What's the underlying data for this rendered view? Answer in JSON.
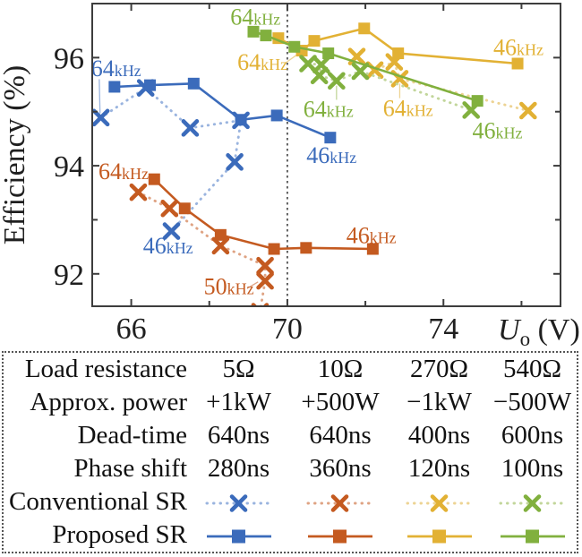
{
  "colors": {
    "blue": {
      "main": "#3B6BBB",
      "light": "#9AB4DF"
    },
    "orange": {
      "main": "#C45A20",
      "light": "#DFA383"
    },
    "yellow": {
      "main": "#E2B134",
      "light": "#EDD393"
    },
    "green": {
      "main": "#81B03E",
      "light": "#C2D69B"
    },
    "axis": "#3D3D3D",
    "text": "#1F1F1F",
    "vline": "#4A4A4A"
  },
  "chart_data": {
    "type": "line",
    "title": "",
    "ylabel": "Efficiency (%)",
    "xlabel_main": "U",
    "xlabel_sub": "o",
    "xlabel_unit": " (V)",
    "xlim": [
      65,
      77
    ],
    "ylim": [
      91.4,
      97.0
    ],
    "xticks": [
      66,
      68,
      70,
      72,
      74,
      76
    ],
    "xtick_labels": {
      "66": "66",
      "70": "70",
      "74": "74"
    },
    "yticks": [
      92,
      93,
      94,
      95,
      96
    ],
    "ytick_labels": {
      "92": "92",
      "94": "94",
      "96": "96"
    },
    "grid": false,
    "vline_x": 70,
    "series": [
      {
        "name": "Conventional SR 5Ω",
        "color": "blue",
        "style": "dotted",
        "marker": "x",
        "points": [
          [
            65.22,
            94.89
          ],
          [
            66.37,
            95.44
          ],
          [
            67.51,
            94.7
          ],
          [
            68.81,
            94.84
          ],
          [
            68.65,
            94.07
          ],
          [
            67.03,
            92.79
          ]
        ]
      },
      {
        "name": "Proposed SR 5Ω",
        "color": "blue",
        "style": "solid",
        "marker": "square",
        "points": [
          [
            65.57,
            95.46
          ],
          [
            66.48,
            95.49
          ],
          [
            67.6,
            95.52
          ],
          [
            68.81,
            94.85
          ],
          [
            69.73,
            94.93
          ],
          [
            71.1,
            94.52
          ]
        ]
      },
      {
        "name": "Conventional SR 10Ω",
        "color": "orange",
        "style": "dotted",
        "marker": "x",
        "points": [
          [
            66.18,
            93.51
          ],
          [
            66.98,
            93.21
          ],
          [
            68.29,
            92.52
          ],
          [
            69.43,
            92.15
          ],
          [
            69.43,
            91.87
          ],
          [
            69.3,
            91.3
          ]
        ]
      },
      {
        "name": "Proposed SR 10Ω",
        "color": "orange",
        "style": "solid",
        "marker": "square",
        "points": [
          [
            66.59,
            93.75
          ],
          [
            67.37,
            93.21
          ],
          [
            68.29,
            92.72
          ],
          [
            69.66,
            92.46
          ],
          [
            70.48,
            92.48
          ],
          [
            72.19,
            92.46
          ]
        ]
      },
      {
        "name": "Conventional SR 270Ω",
        "color": "yellow",
        "style": "dotted",
        "marker": "x",
        "points": [
          [
            71.78,
            96.02
          ],
          [
            72.24,
            95.77
          ],
          [
            72.74,
            95.92
          ],
          [
            72.88,
            95.61
          ],
          [
            76.17,
            95.02
          ]
        ]
      },
      {
        "name": "Proposed SR 270Ω",
        "color": "yellow",
        "style": "solid",
        "marker": "square",
        "points": [
          [
            69.77,
            96.36
          ],
          [
            70.37,
            96.13
          ],
          [
            70.69,
            96.31
          ],
          [
            71.97,
            96.54
          ],
          [
            72.84,
            96.08
          ],
          [
            75.9,
            95.89
          ]
        ]
      },
      {
        "name": "Conventional SR 540Ω",
        "color": "green",
        "style": "dotted",
        "marker": "x",
        "points": [
          [
            70.53,
            95.89
          ],
          [
            70.87,
            95.87
          ],
          [
            70.82,
            95.67
          ],
          [
            71.26,
            95.57
          ],
          [
            71.87,
            95.75
          ],
          [
            74.71,
            95.03
          ]
        ]
      },
      {
        "name": "Proposed SR 540Ω",
        "color": "green",
        "style": "solid",
        "marker": "square",
        "points": [
          [
            69.13,
            96.48
          ],
          [
            69.45,
            96.41
          ],
          [
            70.18,
            96.2
          ],
          [
            71.05,
            96.08
          ],
          [
            74.87,
            95.2
          ]
        ]
      }
    ],
    "annotations": [
      {
        "main": "64",
        "sub": "kHz",
        "color": "blue",
        "x": 64.97,
        "y": 95.66,
        "leader": [
          [
            65.18,
            95.6
          ],
          [
            65.2,
            94.97
          ]
        ]
      },
      {
        "main": "46",
        "sub": "kHz",
        "color": "blue",
        "x": 66.3,
        "y": 92.38
      },
      {
        "main": "46",
        "sub": "kHz",
        "color": "blue",
        "x": 70.49,
        "y": 94.05
      },
      {
        "main": "64",
        "sub": "kHz",
        "color": "orange",
        "x": 65.16,
        "y": 93.75
      },
      {
        "main": "50",
        "sub": "kHz",
        "color": "orange",
        "x": 67.86,
        "y": 91.62,
        "leader": [
          [
            68.97,
            91.73
          ],
          [
            69.25,
            91.85
          ]
        ]
      },
      {
        "main": "46",
        "sub": "kHz",
        "color": "orange",
        "x": 71.51,
        "y": 92.57
      },
      {
        "main": "64",
        "sub": "kHz",
        "color": "green",
        "x": 68.54,
        "y": 96.61
      },
      {
        "main": "64",
        "sub": "kHz",
        "color": "yellow",
        "x": 68.72,
        "y": 95.77,
        "leader": [
          [
            69.95,
            95.9
          ],
          [
            70.22,
            96.04
          ]
        ]
      },
      {
        "main": "64",
        "sub": "kHz",
        "color": "green",
        "x": 70.41,
        "y": 94.9,
        "leader": [
          [
            71.26,
            95.22
          ],
          [
            71.26,
            95.48
          ]
        ]
      },
      {
        "main": "64",
        "sub": "kHz",
        "color": "yellow",
        "x": 72.45,
        "y": 94.92,
        "leader": [
          [
            72.88,
            95.25
          ],
          [
            72.88,
            95.52
          ]
        ]
      },
      {
        "main": "46",
        "sub": "kHz",
        "color": "green",
        "x": 74.74,
        "y": 94.51
      },
      {
        "main": "46",
        "sub": "kHz",
        "color": "yellow",
        "x": 75.28,
        "y": 96.05
      }
    ]
  },
  "legend_table": {
    "series_colors": [
      "blue",
      "orange",
      "yellow",
      "green"
    ],
    "rows": [
      {
        "label": "Load resistance",
        "cells": [
          "5Ω",
          "10Ω",
          "270Ω",
          "540Ω"
        ]
      },
      {
        "label": "Approx. power",
        "cells": [
          "+1kW",
          "+500W",
          "−1kW",
          "−500W"
        ]
      },
      {
        "label": "Dead-time",
        "cells": [
          "640ns",
          "640ns",
          "400ns",
          "600ns"
        ]
      },
      {
        "label": "Phase shift",
        "cells": [
          "280ns",
          "360ns",
          "120ns",
          "100ns"
        ]
      },
      {
        "label": "Conventional SR"
      },
      {
        "label": "Proposed SR"
      }
    ]
  }
}
